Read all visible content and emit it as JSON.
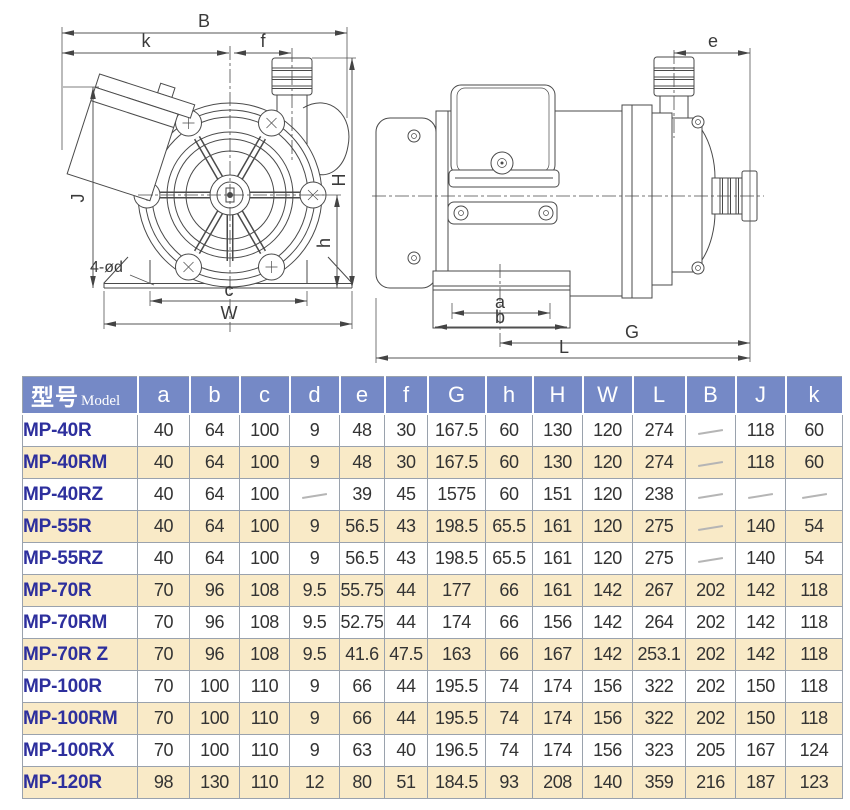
{
  "drawing": {
    "dims": {
      "B": "B",
      "k": "k",
      "f": "f",
      "J": "J",
      "H": "H",
      "h": "h",
      "c": "c",
      "W": "W",
      "hole_note": "4-ød",
      "e": "e",
      "a": "a",
      "b": "b",
      "G": "G",
      "L": "L"
    }
  },
  "table": {
    "header": {
      "model_cn": "型号",
      "model_en": "Model",
      "columns": [
        "a",
        "b",
        "c",
        "d",
        "e",
        "f",
        "G",
        "h",
        "H",
        "W",
        "L",
        "B",
        "J",
        "k"
      ]
    },
    "rows": [
      {
        "model": "MP-40R",
        "values": [
          "40",
          "64",
          "100",
          "9",
          "48",
          "30",
          "167.5",
          "60",
          "130",
          "120",
          "274",
          "—",
          "118",
          "60"
        ]
      },
      {
        "model": "MP-40RM",
        "values": [
          "40",
          "64",
          "100",
          "9",
          "48",
          "30",
          "167.5",
          "60",
          "130",
          "120",
          "274",
          "—",
          "118",
          "60"
        ]
      },
      {
        "model": "MP-40RZ",
        "values": [
          "40",
          "64",
          "100",
          "—",
          "39",
          "45",
          "1575",
          "60",
          "151",
          "120",
          "238",
          "—",
          "—",
          "—"
        ]
      },
      {
        "model": "MP-55R",
        "values": [
          "40",
          "64",
          "100",
          "9",
          "56.5",
          "43",
          "198.5",
          "65.5",
          "161",
          "120",
          "275",
          "—",
          "140",
          "54"
        ]
      },
      {
        "model": "MP-55RZ",
        "values": [
          "40",
          "64",
          "100",
          "9",
          "56.5",
          "43",
          "198.5",
          "65.5",
          "161",
          "120",
          "275",
          "—",
          "140",
          "54"
        ]
      },
      {
        "model": "MP-70R",
        "values": [
          "70",
          "96",
          "108",
          "9.5",
          "55.75",
          "44",
          "177",
          "66",
          "161",
          "142",
          "267",
          "202",
          "142",
          "118"
        ]
      },
      {
        "model": "MP-70RM",
        "values": [
          "70",
          "96",
          "108",
          "9.5",
          "52.75",
          "44",
          "174",
          "66",
          "156",
          "142",
          "264",
          "202",
          "142",
          "118"
        ]
      },
      {
        "model": "MP-70R Z",
        "values": [
          "70",
          "96",
          "108",
          "9.5",
          "41.6",
          "47.5",
          "163",
          "66",
          "167",
          "142",
          "253.1",
          "202",
          "142",
          "118"
        ]
      },
      {
        "model": "MP-100R",
        "values": [
          "70",
          "100",
          "110",
          "9",
          "66",
          "44",
          "195.5",
          "74",
          "174",
          "156",
          "322",
          "202",
          "150",
          "118"
        ]
      },
      {
        "model": "MP-100RM",
        "values": [
          "70",
          "100",
          "110",
          "9",
          "66",
          "44",
          "195.5",
          "74",
          "174",
          "156",
          "322",
          "202",
          "150",
          "118"
        ]
      },
      {
        "model": "MP-100RX",
        "values": [
          "70",
          "100",
          "110",
          "9",
          "63",
          "40",
          "196.5",
          "74",
          "174",
          "156",
          "323",
          "205",
          "167",
          "124"
        ]
      },
      {
        "model": "MP-120R",
        "values": [
          "98",
          "130",
          "110",
          "12",
          "80",
          "51",
          "184.5",
          "93",
          "208",
          "140",
          "359",
          "216",
          "187",
          "123"
        ]
      }
    ]
  },
  "colors": {
    "header_bg": "#7589c6",
    "row_alt": "#f9eac7",
    "row_white": "#ffffff",
    "model_text": "#2d2f9d",
    "value_text": "#333333",
    "grid_line": "#9aa2ad",
    "drawing_line": "#4a4a4a",
    "dash": "#b5b5b5"
  }
}
